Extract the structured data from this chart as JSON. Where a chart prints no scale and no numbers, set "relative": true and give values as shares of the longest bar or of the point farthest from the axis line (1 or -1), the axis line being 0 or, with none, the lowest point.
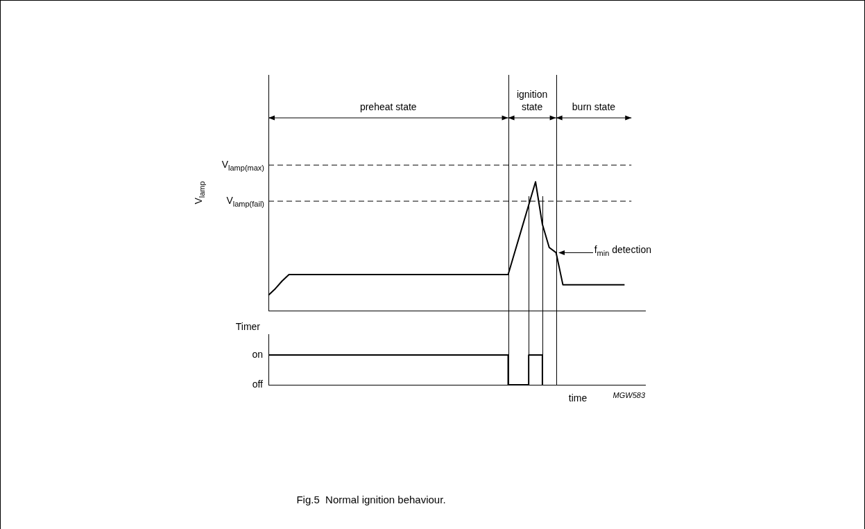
{
  "chart_data": [
    {
      "type": "line",
      "ylabel": "V$_{lamp}$",
      "relative": true,
      "marker": "none",
      "line_style": "solid",
      "legend": false,
      "grid": false,
      "categories": [
        null,
        null,
        null,
        null,
        null,
        null,
        null,
        null,
        null,
        null,
        null,
        null,
        null,
        null,
        null,
        null,
        null,
        null,
        null,
        null,
        null,
        null,
        null,
        null,
        null,
        null,
        null,
        null,
        null,
        null,
        null,
        null,
        null,
        null,
        null,
        null,
        null,
        null,
        null,
        null,
        null,
        null,
        null,
        null,
        null,
        null,
        null,
        null,
        null,
        null,
        null,
        null,
        null,
        null,
        null,
        null
      ],
      "series": [
        {
          "color": "#000000",
          "values": [
            0.12,
            0.17,
            0.23,
            0.28,
            0.28,
            0.28,
            0.28,
            0.28,
            0.28,
            0.28,
            0.28,
            0.28,
            0.28,
            0.28,
            0.28,
            0.28,
            0.28,
            0.28,
            0.28,
            0.28,
            0.28,
            0.28,
            0.28,
            0.28,
            0.28,
            0.28,
            0.28,
            0.28,
            0.28,
            0.28,
            0.28,
            0.28,
            0.28,
            0.28,
            0.28,
            0.28,
            0.46,
            0.64,
            0.82,
            1,
            0.67,
            0.49,
            0.45,
            0.2,
            0.2,
            0.2,
            0.2,
            0.2,
            0.2,
            0.2,
            0.2,
            0.2,
            0.2,
            null,
            null,
            null
          ]
        }
      ],
      "ref_lines": [
        {
          "axis": "y",
          "value": 1.13,
          "label": "V$_{lamp(max)}$",
          "line_style": "dashed",
          "color": "#000000"
        },
        {
          "axis": "y",
          "value": 0.85,
          "label": "V$_{lamp(fail)}$",
          "line_style": "dashed",
          "color": "#000000"
        }
      ],
      "annotations": [
        "preheat state",
        "ignition state",
        "burn state",
        "f$_{min}$ detection"
      ]
    },
    {
      "type": "step",
      "title": "Fig.5  Normal ignition behaviour.",
      "ylabel": "Timer",
      "xlabel": "time",
      "relative": true,
      "marker": "none",
      "line_style": "solid",
      "legend": false,
      "grid": false,
      "categories": [
        null,
        null,
        null,
        null,
        null,
        null,
        null,
        null,
        null,
        null,
        null,
        null,
        null,
        null,
        null,
        null,
        null,
        null,
        null,
        null,
        null,
        null,
        null,
        null,
        null,
        null,
        null,
        null,
        null,
        null,
        null,
        null,
        null,
        null,
        null,
        null,
        null,
        null,
        null,
        null,
        null,
        null,
        null,
        null,
        null,
        null,
        null,
        null,
        null,
        null,
        null,
        null,
        null,
        null,
        null,
        null
      ],
      "series": [
        {
          "color": "#000000",
          "values": [
            1,
            1,
            1,
            1,
            1,
            1,
            1,
            1,
            1,
            1,
            1,
            1,
            1,
            1,
            1,
            1,
            1,
            1,
            1,
            1,
            1,
            1,
            1,
            1,
            1,
            1,
            1,
            1,
            1,
            1,
            1,
            1,
            1,
            1,
            1,
            0,
            0,
            0,
            1,
            1,
            0,
            null,
            null,
            null,
            null,
            null,
            null,
            null,
            null,
            null,
            null,
            null,
            null,
            null,
            null,
            null
          ]
        }
      ],
      "annotations": [
        "on",
        "off",
        "MGW583"
      ]
    }
  ]
}
